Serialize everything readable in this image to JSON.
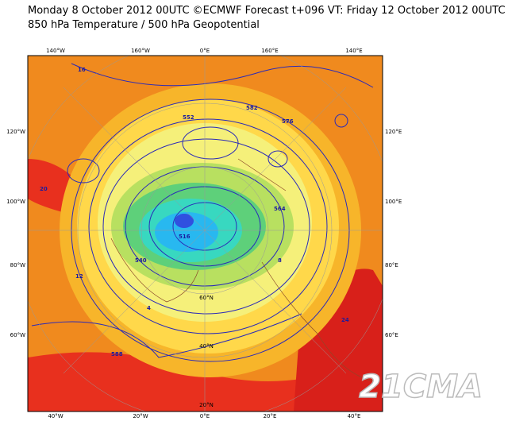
{
  "header": {
    "title": "Monday 8 October 2012 00UTC ©ECMWF Forecast t+096 VT: Friday 12 October 2012 00UTC",
    "subtitle": "850 hPa Temperature / 500 hPa Geopotential"
  },
  "map": {
    "top_labels": [
      "140°W",
      "160°W",
      "0°E",
      "160°E",
      "140°E"
    ],
    "left_labels": [
      "120°W",
      "100°W",
      "80°W",
      "60°W"
    ],
    "right_labels": [
      "120°E",
      "100°E",
      "80°E",
      "60°E"
    ],
    "bottom_labels": [
      "40°W",
      "20°W",
      "0°E",
      "20°E",
      "40°E"
    ],
    "lat_labels": [
      "60°N",
      "40°N",
      "20°N"
    ],
    "contour_labels": [
      "576",
      "582",
      "588",
      "552",
      "564",
      "516",
      "540",
      "16",
      "12",
      "24",
      "20",
      "8",
      "4"
    ]
  },
  "watermark": "21CMA"
}
